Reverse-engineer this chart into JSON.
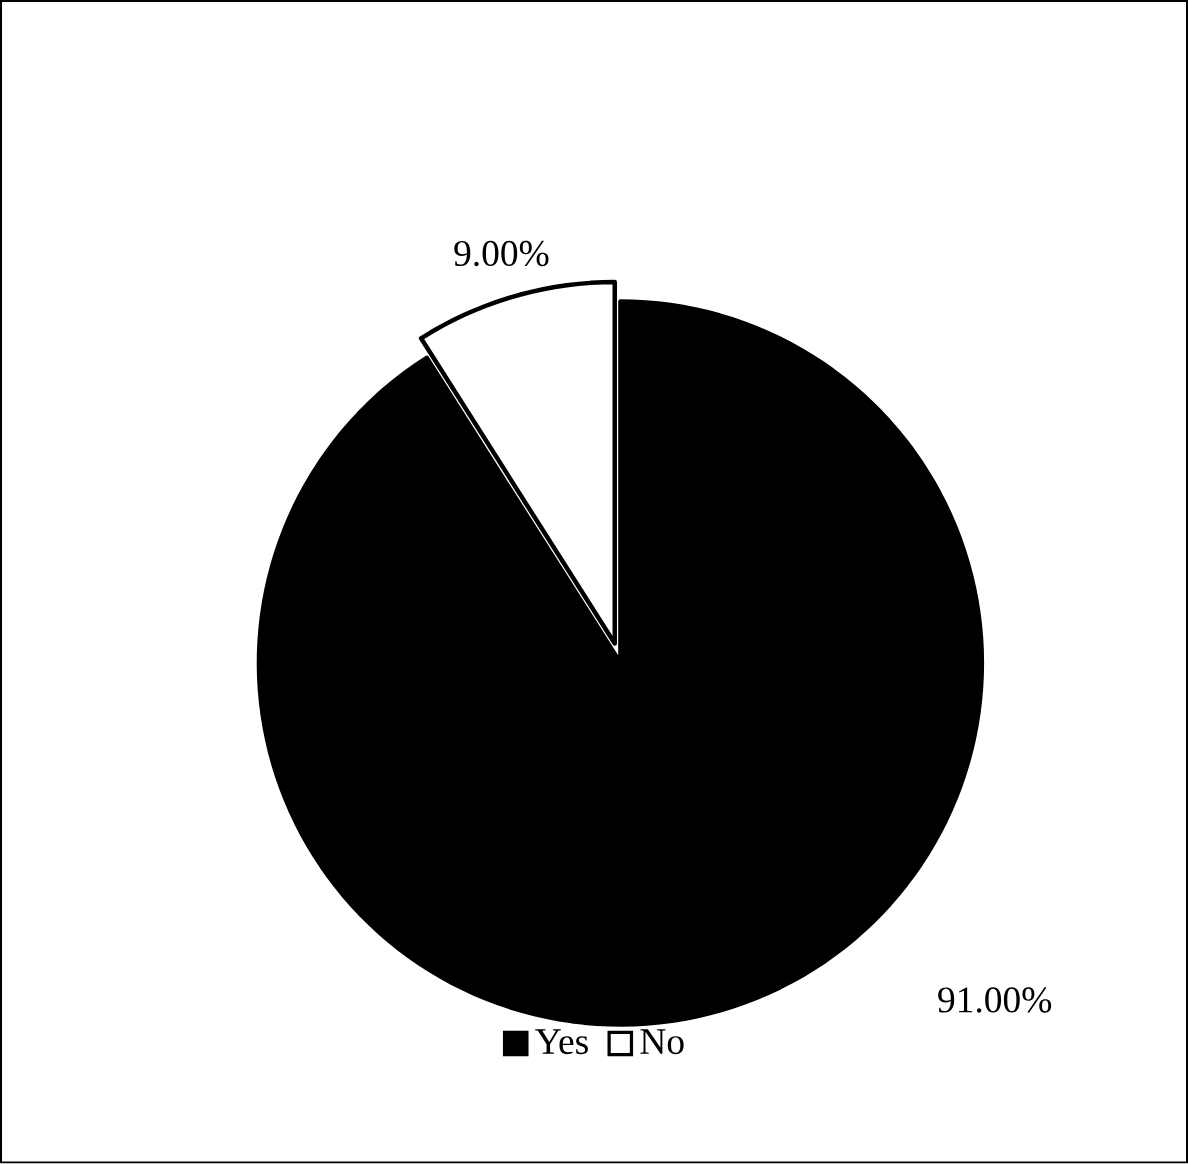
{
  "chart_data": {
    "type": "pie",
    "categories": [
      "Yes",
      "No"
    ],
    "values": [
      91,
      9
    ],
    "colors": [
      "#000000",
      "#ffffff"
    ],
    "value_labels": [
      "91.00%",
      "9.00%"
    ],
    "legend": "bottom"
  }
}
